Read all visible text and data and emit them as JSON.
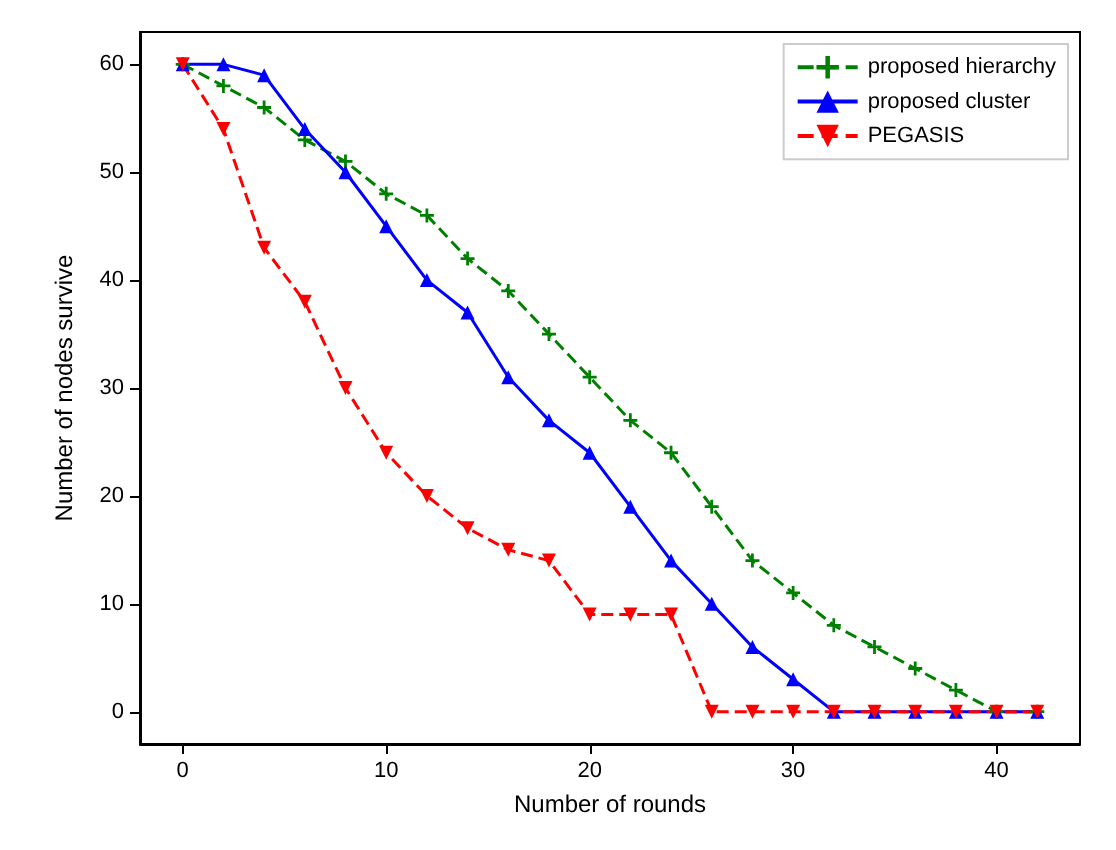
{
  "chart_data": {
    "type": "line",
    "xlabel": "Number of rounds",
    "ylabel": "Number of nodes survive",
    "x": [
      0,
      2,
      4,
      6,
      8,
      10,
      12,
      14,
      16,
      18,
      20,
      22,
      24,
      26,
      28,
      30,
      32,
      34,
      36,
      38,
      40,
      42
    ],
    "xlim": [
      -2.1,
      44.1
    ],
    "xticks": [
      0,
      10,
      20,
      30,
      40
    ],
    "ylim": [
      -3,
      63
    ],
    "yticks": [
      0,
      10,
      20,
      30,
      40,
      50,
      60
    ],
    "grid": false,
    "legend": "top right",
    "series": [
      {
        "name": "proposed hierarchy",
        "color": "#008000",
        "line_style": "dashed",
        "marker": "cross",
        "values": [
          60,
          58,
          56,
          53,
          51,
          48,
          46,
          42,
          39,
          35,
          31,
          27,
          24,
          19,
          14,
          11,
          8,
          6,
          4,
          2,
          0,
          0
        ]
      },
      {
        "name": "proposed cluster",
        "color": "#0000ff",
        "line_style": "solid",
        "marker": "triangle",
        "values": [
          60,
          60,
          59,
          54,
          50,
          45,
          40,
          37,
          31,
          27,
          24,
          19,
          14,
          10,
          6,
          3,
          0,
          0,
          0,
          0,
          0,
          0
        ]
      },
      {
        "name": "PEGASIS",
        "color": "#ff0000",
        "line_style": "dashed",
        "marker": "triangle",
        "values": [
          60,
          54,
          43,
          38,
          30,
          24,
          20,
          17,
          15,
          14,
          9,
          9,
          9,
          0,
          0,
          0,
          0,
          0,
          0,
          0,
          0,
          0
        ]
      }
    ]
  }
}
